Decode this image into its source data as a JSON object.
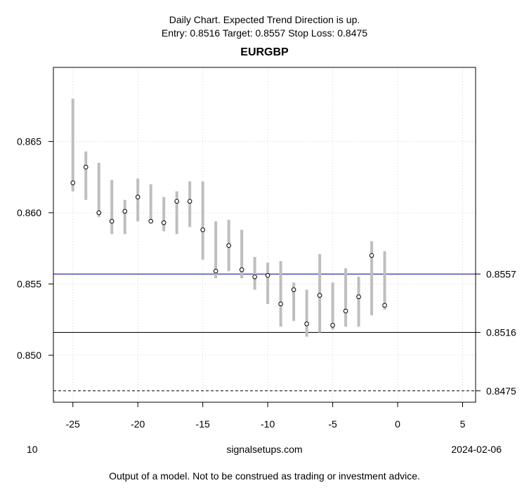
{
  "header": {
    "line1": "Daily Chart. Expected Trend Direction is up.",
    "line2": "Entry: 0.8516 Target: 0.8557 Stop Loss: 0.8475",
    "title": "EURGBP"
  },
  "footer": {
    "left": "10",
    "center": "signalsetups.com",
    "right": "2024-02-06",
    "disclaimer": "Output of a model. Not to be construed as trading or investment advice."
  },
  "colors": {
    "range_bar": "#bebebe",
    "target_line": "#00008b",
    "entry_line": "#000000",
    "stop_line": "#000000",
    "grid": "#d3d3d3"
  },
  "chart_data": {
    "type": "scatter",
    "title": "EURGBP",
    "xlim": [
      -26.5,
      6
    ],
    "ylim": [
      0.8467,
      0.8702
    ],
    "x_ticks": [
      -25,
      -20,
      -15,
      -10,
      -5,
      0,
      5
    ],
    "x_tick_labels": [
      "-25",
      "-20",
      "-15",
      "-10",
      "-5",
      "0",
      "5"
    ],
    "y_ticks": [
      0.85,
      0.855,
      0.86,
      0.865
    ],
    "y_tick_labels": [
      "0.850",
      "0.855",
      "0.860",
      "0.865"
    ],
    "grid": true,
    "points": [
      {
        "x": -25,
        "low": 0.8615,
        "high": 0.868,
        "close": 0.8621
      },
      {
        "x": -24,
        "low": 0.8609,
        "high": 0.8643,
        "close": 0.8632
      },
      {
        "x": -23,
        "low": 0.8597,
        "high": 0.8635,
        "close": 0.86
      },
      {
        "x": -22,
        "low": 0.8585,
        "high": 0.8623,
        "close": 0.8594
      },
      {
        "x": -21,
        "low": 0.8585,
        "high": 0.8609,
        "close": 0.8601
      },
      {
        "x": -20,
        "low": 0.8594,
        "high": 0.8624,
        "close": 0.8611
      },
      {
        "x": -19,
        "low": 0.8594,
        "high": 0.862,
        "close": 0.8594
      },
      {
        "x": -18,
        "low": 0.8587,
        "high": 0.8611,
        "close": 0.8593
      },
      {
        "x": -17,
        "low": 0.8585,
        "high": 0.8615,
        "close": 0.8608
      },
      {
        "x": -16,
        "low": 0.859,
        "high": 0.8622,
        "close": 0.8608
      },
      {
        "x": -15,
        "low": 0.8567,
        "high": 0.8622,
        "close": 0.8588
      },
      {
        "x": -14,
        "low": 0.8554,
        "high": 0.8594,
        "close": 0.8559
      },
      {
        "x": -13,
        "low": 0.8559,
        "high": 0.8595,
        "close": 0.8577
      },
      {
        "x": -12,
        "low": 0.8554,
        "high": 0.8588,
        "close": 0.856
      },
      {
        "x": -11,
        "low": 0.8546,
        "high": 0.8569,
        "close": 0.8555
      },
      {
        "x": -10,
        "low": 0.8536,
        "high": 0.8565,
        "close": 0.8556
      },
      {
        "x": -9,
        "low": 0.852,
        "high": 0.8566,
        "close": 0.8536
      },
      {
        "x": -8,
        "low": 0.8524,
        "high": 0.8551,
        "close": 0.8546
      },
      {
        "x": -7,
        "low": 0.8513,
        "high": 0.8546,
        "close": 0.8522
      },
      {
        "x": -6,
        "low": 0.8516,
        "high": 0.8571,
        "close": 0.8542
      },
      {
        "x": -5,
        "low": 0.8518,
        "high": 0.8551,
        "close": 0.8521
      },
      {
        "x": -4,
        "low": 0.852,
        "high": 0.8561,
        "close": 0.8531
      },
      {
        "x": -3,
        "low": 0.852,
        "high": 0.8555,
        "close": 0.8541
      },
      {
        "x": -2,
        "low": 0.8528,
        "high": 0.858,
        "close": 0.857
      },
      {
        "x": -1,
        "low": 0.8532,
        "high": 0.8573,
        "close": 0.8535
      }
    ],
    "hlines": [
      {
        "name": "target",
        "value": 0.8557,
        "label": "0.8557",
        "style": "solid",
        "color": "#00008b"
      },
      {
        "name": "entry",
        "value": 0.8516,
        "label": "0.8516",
        "style": "solid",
        "color": "#000000"
      },
      {
        "name": "stop-loss",
        "value": 0.8475,
        "label": "0.8475",
        "style": "dashed",
        "color": "#000000"
      }
    ]
  }
}
